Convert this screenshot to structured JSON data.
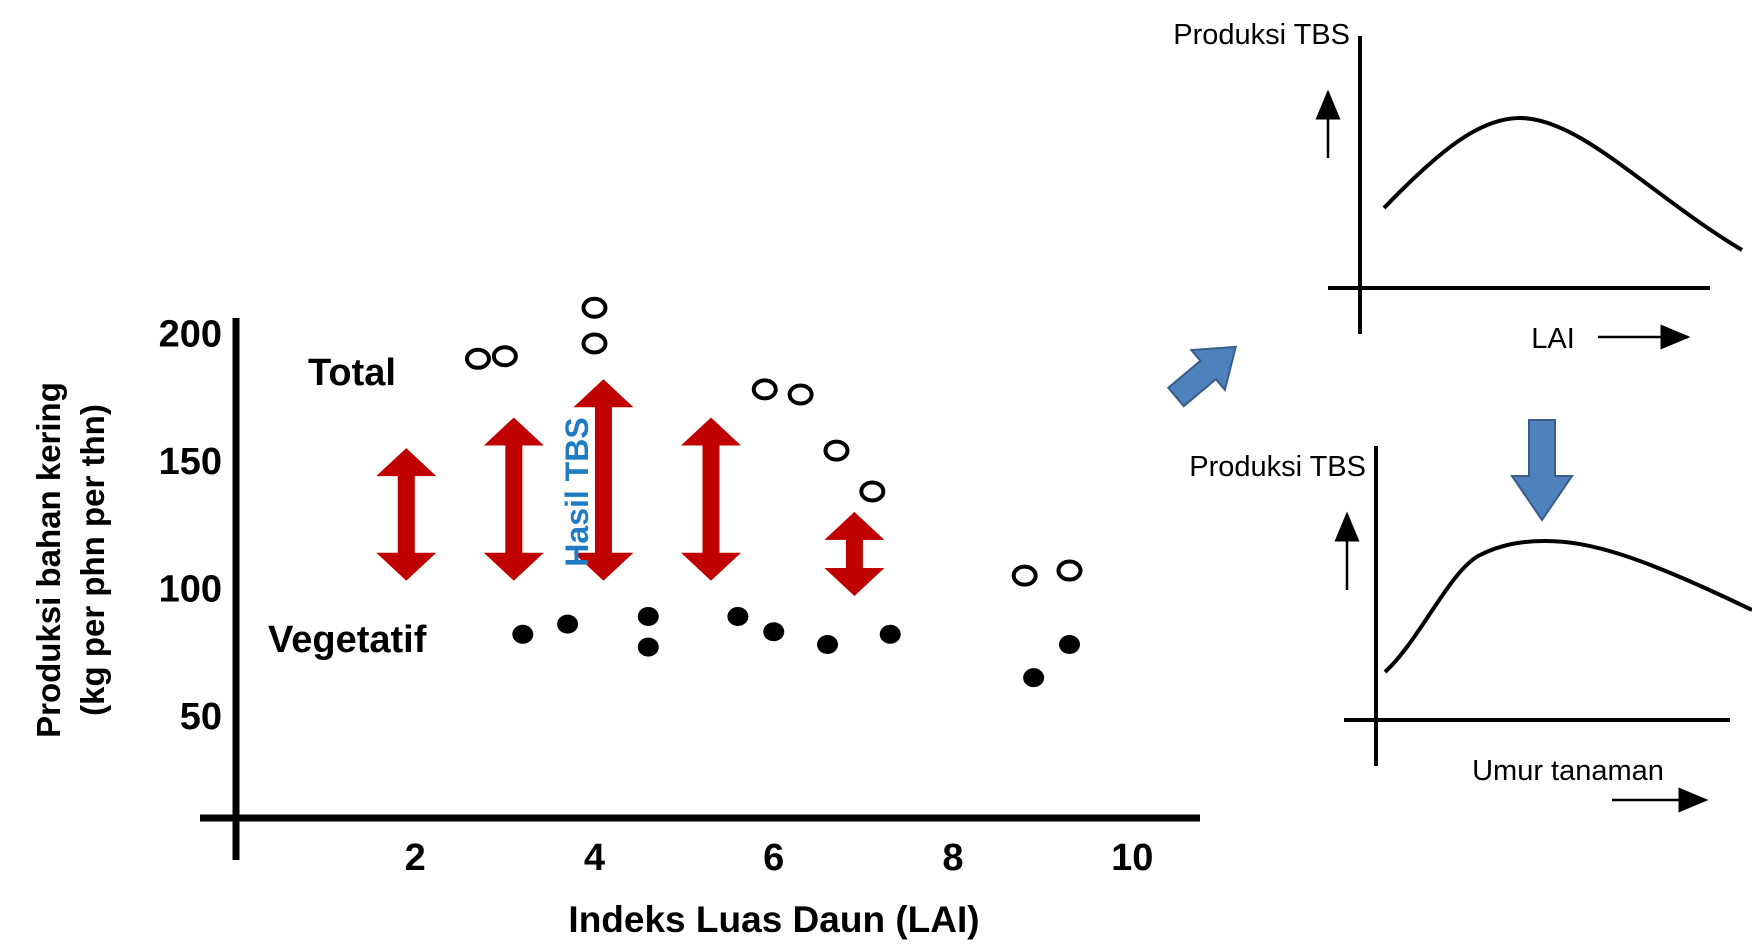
{
  "chart_data": [
    {
      "type": "scatter",
      "title": "",
      "xlabel": "Indeks Luas Daun (LAI)",
      "ylabel_line1": "Produksi bahan kering",
      "ylabel_line2": "(kg per phn per thn)",
      "x_ticks": [
        2,
        4,
        6,
        8,
        10
      ],
      "y_ticks": [
        50,
        100,
        150,
        200
      ],
      "xlim": [
        0,
        10.6
      ],
      "ylim": [
        10,
        215
      ],
      "series": [
        {
          "name": "Total",
          "marker": "open-circle",
          "points": [
            {
              "x": 2.7,
              "y": 190
            },
            {
              "x": 3.0,
              "y": 191
            },
            {
              "x": 4.0,
              "y": 210
            },
            {
              "x": 4.0,
              "y": 196
            },
            {
              "x": 5.9,
              "y": 178
            },
            {
              "x": 6.3,
              "y": 176
            },
            {
              "x": 6.7,
              "y": 154
            },
            {
              "x": 7.1,
              "y": 138
            },
            {
              "x": 8.8,
              "y": 105
            },
            {
              "x": 9.3,
              "y": 107
            }
          ]
        },
        {
          "name": "Vegetatif",
          "marker": "filled-circle",
          "points": [
            {
              "x": 3.2,
              "y": 82
            },
            {
              "x": 3.7,
              "y": 86
            },
            {
              "x": 4.6,
              "y": 89
            },
            {
              "x": 4.6,
              "y": 77
            },
            {
              "x": 5.6,
              "y": 89
            },
            {
              "x": 6.0,
              "y": 83
            },
            {
              "x": 6.6,
              "y": 78
            },
            {
              "x": 7.3,
              "y": 82
            },
            {
              "x": 8.9,
              "y": 65
            },
            {
              "x": 9.3,
              "y": 78
            }
          ]
        }
      ],
      "difference_arrows": [
        {
          "x": 1.9,
          "y_low": 103,
          "y_high": 155
        },
        {
          "x": 3.1,
          "y_low": 103,
          "y_high": 167
        },
        {
          "x": 4.1,
          "y_low": 103,
          "y_high": 182
        },
        {
          "x": 5.3,
          "y_low": 103,
          "y_high": 167
        },
        {
          "x": 6.9,
          "y_low": 97,
          "y_high": 130
        }
      ],
      "annotations": {
        "total_label": "Total",
        "vegetatif_label": "Vegetatif",
        "hasil_label": "Hasil TBS"
      },
      "colors": {
        "arrow": "#c00000",
        "hasil_label": "#1f7cc4",
        "axis": "#000000"
      }
    },
    {
      "type": "line",
      "title": "",
      "ylabel": "Produksi TBS",
      "xlabel": "LAI",
      "shape": "rise-then-fall (optimum)"
    },
    {
      "type": "line",
      "title": "",
      "ylabel": "Produksi TBS",
      "xlabel": "Umur tanaman",
      "shape": "rapid rise, plateau, slow decline"
    }
  ],
  "connector_arrows": {
    "color": "#4f81bd",
    "stroke": "#385d8a"
  }
}
